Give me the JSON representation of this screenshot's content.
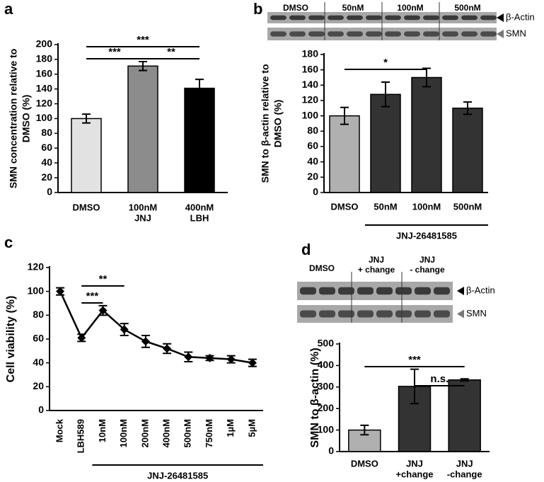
{
  "chart_data": [
    {
      "type": "bar",
      "panel": "a",
      "ylabel": [
        "SMN concentration relative to",
        "DMSO (%)"
      ],
      "categories": [
        "DMSO",
        [
          "100nM",
          "JNJ"
        ],
        [
          "400nM",
          "LBH"
        ]
      ],
      "values": [
        100,
        171,
        141
      ],
      "errors": [
        6,
        6,
        12
      ],
      "colors": [
        "#e2e2e2",
        "#8c8c8c",
        "#000000"
      ],
      "ylim": [
        0,
        200
      ],
      "yticks": [
        0,
        20,
        40,
        60,
        80,
        100,
        120,
        140,
        160,
        180,
        200
      ],
      "annotations": [
        "***",
        "***",
        "**"
      ]
    },
    {
      "type": "bar",
      "panel": "b",
      "ylabel": [
        "SMN to β-actin relative to",
        "DMSO  (%)"
      ],
      "categories": [
        "DMSO",
        "50nM",
        "100nM",
        "500nM"
      ],
      "values": [
        100,
        128,
        150,
        110
      ],
      "errors": [
        11,
        16,
        12,
        8
      ],
      "colors": [
        "#b0b0b0",
        "#333333",
        "#333333",
        "#333333"
      ],
      "ylim": [
        0,
        180
      ],
      "yticks": [
        0,
        20,
        40,
        60,
        80,
        100,
        120,
        140,
        160,
        180
      ],
      "annotations": [
        "*"
      ],
      "group_label": "JNJ-26481585",
      "blot": {
        "lanes": [
          "DMSO",
          "50nM",
          "100nM",
          "500nM"
        ],
        "bands": [
          "β-Actin",
          "SMN"
        ]
      }
    },
    {
      "type": "line",
      "panel": "c",
      "ylabel": "Cell viability (%)",
      "categories": [
        "Mock",
        "LBH589",
        "10nM",
        "100nM",
        "200nM",
        "400nM",
        "500nM",
        "750nM",
        "1µM",
        "5µM"
      ],
      "values": [
        100,
        61,
        84,
        68,
        58,
        52,
        45,
        44,
        43,
        40
      ],
      "errors": [
        3,
        3,
        4,
        5,
        5,
        4,
        4,
        2,
        3,
        3
      ],
      "color": "#000000",
      "ylim": [
        0,
        120
      ],
      "yticks": [
        0,
        20,
        40,
        60,
        80,
        100,
        120
      ],
      "annotations": [
        "**",
        "***"
      ],
      "group_label": "JNJ-26481585"
    },
    {
      "type": "bar",
      "panel": "d",
      "ylabel": "SMN to β-actin (%)",
      "categories": [
        "DMSO",
        [
          "JNJ",
          "+change"
        ],
        [
          "JNJ",
          "-change"
        ]
      ],
      "values": [
        100,
        303,
        333
      ],
      "errors": [
        22,
        80,
        5
      ],
      "colors": [
        "#b0b0b0",
        "#333333",
        "#333333"
      ],
      "ylim": [
        0,
        500
      ],
      "yticks": [
        0,
        100,
        200,
        300,
        400,
        500
      ],
      "annotations": [
        "***",
        "n.s."
      ],
      "blot": {
        "lanes": [
          "DMSO",
          [
            "JNJ",
            "+ change"
          ],
          [
            "JNJ",
            "- change"
          ]
        ],
        "bands": [
          "β-Actin",
          "SMN"
        ]
      }
    }
  ]
}
